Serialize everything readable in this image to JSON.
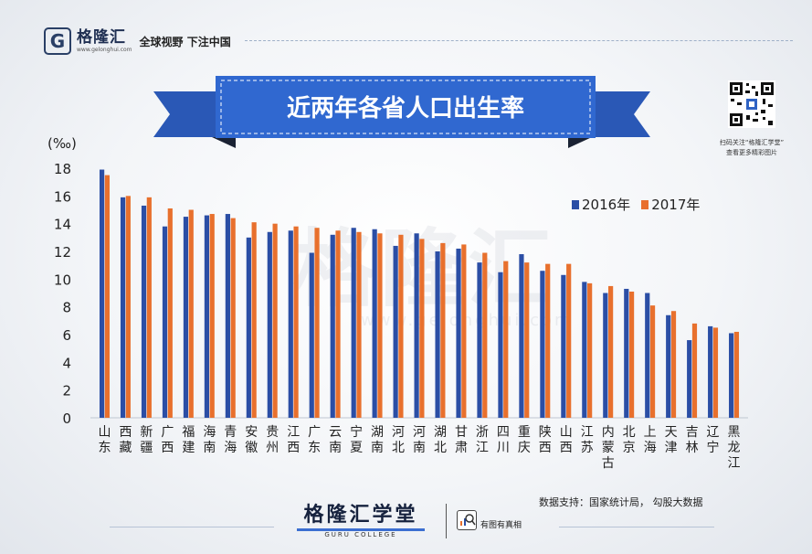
{
  "header": {
    "logo_letter": "G",
    "logo_name": "格隆汇",
    "logo_url": "www.gelonghui.com",
    "slogan": "全球视野 下注中国"
  },
  "banner": {
    "title": "近两年各省人口出生率"
  },
  "qr": {
    "caption_line1": "扫码关注“格隆汇学堂”",
    "caption_line2": "查看更多精彩图片"
  },
  "watermark": {
    "text": "格隆汇",
    "url": "www.gelonghui.com"
  },
  "legend": {
    "series1": "2016年",
    "series2": "2017年"
  },
  "colors": {
    "series1": "#2b4ea5",
    "series2": "#e8702d",
    "banner": "#2f63c4",
    "banner_dark": "#1d3f86"
  },
  "chart_data": {
    "type": "bar",
    "unit_label": "(‰)",
    "ylim": [
      0,
      18
    ],
    "yticks": [
      0,
      2,
      4,
      6,
      8,
      10,
      12,
      14,
      16,
      18
    ],
    "grid": false,
    "legend_position": "top-right",
    "categories": [
      "山东",
      "西藏",
      "新疆",
      "广西",
      "福建",
      "海南",
      "青海",
      "安徽",
      "贵州",
      "江西",
      "广东",
      "云南",
      "宁夏",
      "湖南",
      "河北",
      "河南",
      "湖北",
      "甘肃",
      "浙江",
      "四川",
      "重庆",
      "陕西",
      "山西",
      "江苏",
      "内蒙古",
      "北京",
      "上海",
      "天津",
      "吉林",
      "辽宁",
      "黑龙江"
    ],
    "series": [
      {
        "name": "2016年",
        "values": [
          17.9,
          15.9,
          15.3,
          13.8,
          14.5,
          14.6,
          14.7,
          13.0,
          13.4,
          13.5,
          11.9,
          13.2,
          13.7,
          13.6,
          12.4,
          13.3,
          12.0,
          12.2,
          11.2,
          10.5,
          11.8,
          10.6,
          10.3,
          9.8,
          9.0,
          9.3,
          9.0,
          7.4,
          5.6,
          6.6,
          6.1
        ]
      },
      {
        "name": "2017年",
        "values": [
          17.5,
          16.0,
          15.9,
          15.1,
          15.0,
          14.7,
          14.4,
          14.1,
          14.0,
          13.8,
          13.7,
          13.5,
          13.4,
          13.3,
          13.2,
          12.9,
          12.6,
          12.5,
          11.9,
          11.3,
          11.2,
          11.1,
          11.1,
          9.7,
          9.5,
          9.1,
          8.1,
          7.7,
          6.8,
          6.5,
          6.2
        ]
      }
    ]
  },
  "footer": {
    "source": "数据支持：国家统计局， 勾股大数据",
    "college_name": "格隆汇学堂",
    "college_sub": "GURU COLLEGE",
    "truth": "有图有真相"
  }
}
